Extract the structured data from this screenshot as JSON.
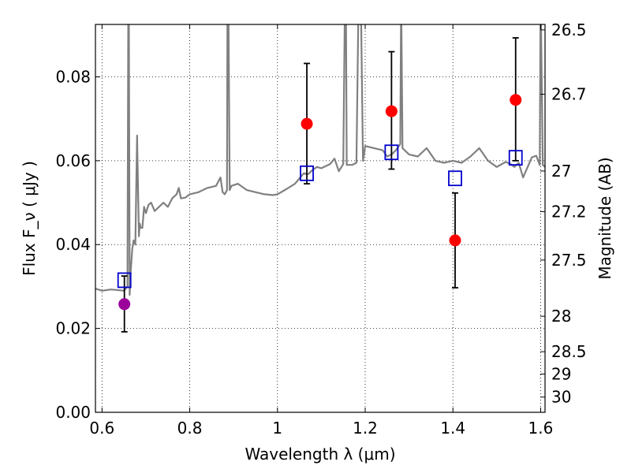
{
  "chart_data": {
    "type": "scatter",
    "title": "",
    "xlabel": "Wavelength  λ (μm)",
    "ylabel": "Flux  F_ν  ( μJy )",
    "y2label": "Magnitude (AB)",
    "xlim": [
      0.585,
      1.61
    ],
    "ylim": [
      0.0,
      0.0925
    ],
    "grid": true,
    "grid_style": "dotted",
    "x_ticks": [
      0.6,
      0.8,
      1.0,
      1.2,
      1.4,
      1.6
    ],
    "x_tick_labels": [
      "0.6",
      "0.8",
      "1",
      "1.2",
      "1.4",
      "1.6"
    ],
    "y_ticks": [
      0.0,
      0.02,
      0.04,
      0.06,
      0.08
    ],
    "y_tick_labels": [
      "0.00",
      "0.02",
      "0.04",
      "0.06",
      "0.08"
    ],
    "y2_ticks": [
      26.5,
      26.7,
      27.0,
      27.2,
      27.5,
      28.0,
      28.5,
      29.0,
      30.0
    ],
    "y2_tick_labels": [
      "26.5",
      "26.7",
      "27",
      "27.2",
      "27.5",
      "28",
      "28.5",
      "29",
      "30"
    ],
    "spectrum": {
      "color": "#808080",
      "x": [
        0.585,
        0.6,
        0.62,
        0.64,
        0.65,
        0.658,
        0.66,
        0.661,
        0.663,
        0.665,
        0.667,
        0.669,
        0.672,
        0.676,
        0.68,
        0.684,
        0.686,
        0.688,
        0.692,
        0.696,
        0.7,
        0.706,
        0.712,
        0.72,
        0.73,
        0.74,
        0.75,
        0.76,
        0.77,
        0.775,
        0.78,
        0.79,
        0.8,
        0.82,
        0.84,
        0.86,
        0.87,
        0.875,
        0.88,
        0.885,
        0.886,
        0.888,
        0.891,
        0.895,
        0.91,
        0.93,
        0.95,
        0.97,
        0.99,
        1.0,
        1.02,
        1.04,
        1.06,
        1.07,
        1.08,
        1.09,
        1.1,
        1.12,
        1.13,
        1.14,
        1.15,
        1.154,
        1.156,
        1.158,
        1.162,
        1.17,
        1.18,
        1.185,
        1.19,
        1.195,
        1.2,
        1.22,
        1.24,
        1.25,
        1.26,
        1.27,
        1.28,
        1.282,
        1.285,
        1.29,
        1.3,
        1.32,
        1.34,
        1.36,
        1.38,
        1.4,
        1.42,
        1.44,
        1.46,
        1.48,
        1.5,
        1.52,
        1.53,
        1.54,
        1.55,
        1.56,
        1.58,
        1.59,
        1.598,
        1.6,
        1.605,
        1.61
      ],
      "y": [
        0.0295,
        0.029,
        0.0293,
        0.0291,
        0.029,
        0.03,
        0.1,
        0.1,
        0.028,
        0.033,
        0.036,
        0.039,
        0.041,
        0.04,
        0.066,
        0.042,
        0.045,
        0.044,
        0.044,
        0.049,
        0.0475,
        0.0495,
        0.05,
        0.048,
        0.049,
        0.05,
        0.049,
        0.051,
        0.052,
        0.0535,
        0.051,
        0.0512,
        0.052,
        0.0525,
        0.0535,
        0.054,
        0.056,
        0.0525,
        0.052,
        0.053,
        0.1,
        0.1,
        0.053,
        0.054,
        0.0545,
        0.053,
        0.0525,
        0.052,
        0.0518,
        0.052,
        0.0532,
        0.0545,
        0.057,
        0.0568,
        0.0578,
        0.0585,
        0.0582,
        0.0592,
        0.0605,
        0.0575,
        0.0592,
        0.1,
        0.1,
        0.059,
        0.059,
        0.059,
        0.0595,
        0.1,
        0.1,
        0.06,
        0.0635,
        0.063,
        0.0625,
        0.061,
        0.0615,
        0.0625,
        0.064,
        0.1,
        0.063,
        0.0625,
        0.0615,
        0.061,
        0.063,
        0.06,
        0.0595,
        0.06,
        0.0595,
        0.061,
        0.063,
        0.06,
        0.0585,
        0.0597,
        0.0593,
        0.0585,
        0.0595,
        0.056,
        0.0608,
        0.0612,
        0.059,
        0.1,
        0.059,
        0.0585
      ]
    },
    "series": [
      {
        "marker": "circle",
        "color": "#9b009b",
        "points": [
          {
            "x": 0.651,
            "y": 0.0258,
            "yerr_low": 0.0192,
            "yerr_high": 0.0325
          }
        ]
      },
      {
        "marker": "circle",
        "color": "#ff0000",
        "points": [
          {
            "x": 1.067,
            "y": 0.0688,
            "yerr_low": 0.0545,
            "yerr_high": 0.0832
          },
          {
            "x": 1.26,
            "y": 0.0718,
            "yerr_low": 0.058,
            "yerr_high": 0.086
          },
          {
            "x": 1.405,
            "y": 0.041,
            "yerr_low": 0.0297,
            "yerr_high": 0.0523
          },
          {
            "x": 1.543,
            "y": 0.0745,
            "yerr_low": 0.06,
            "yerr_high": 0.0893
          }
        ]
      },
      {
        "marker": "open-square",
        "color": "#0000cc",
        "points": [
          {
            "x": 0.651,
            "y": 0.0315
          },
          {
            "x": 1.067,
            "y": 0.057
          },
          {
            "x": 1.26,
            "y": 0.062
          },
          {
            "x": 1.405,
            "y": 0.0558
          },
          {
            "x": 1.543,
            "y": 0.0607
          }
        ]
      }
    ]
  }
}
